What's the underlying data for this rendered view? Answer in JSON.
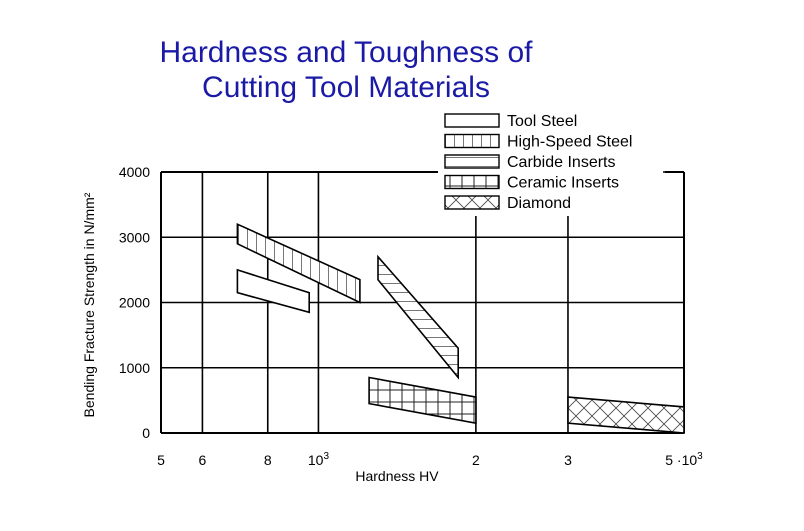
{
  "chart_data": {
    "type": "area",
    "title_lines": [
      "Hardness and Toughness of",
      "Cutting Tool Materials"
    ],
    "xlabel": "Hardness HV",
    "ylabel": "Bending Fracture Strength in N/mm²",
    "x_scale": "log",
    "xlim": [
      500,
      5000
    ],
    "ylim": [
      0,
      4000
    ],
    "grid": true,
    "legend_position": "top-right",
    "x_ticks": [
      {
        "value": 500,
        "label": "5"
      },
      {
        "value": 600,
        "label": "6"
      },
      {
        "value": 800,
        "label": "8"
      },
      {
        "value": 1000,
        "label": "10",
        "sup": "3"
      },
      {
        "value": 2000,
        "label": "2"
      },
      {
        "value": 3000,
        "label": "3"
      },
      {
        "value": 5000,
        "label": "5 ·10",
        "sup": "3"
      }
    ],
    "y_ticks": [
      {
        "value": 0,
        "label": "0"
      },
      {
        "value": 1000,
        "label": "1000"
      },
      {
        "value": 2000,
        "label": "2000"
      },
      {
        "value": 3000,
        "label": "3000"
      },
      {
        "value": 4000,
        "label": "4000"
      }
    ],
    "series": [
      {
        "name": "Tool Steel",
        "pattern": "none",
        "polygon": [
          [
            700,
            2500
          ],
          [
            960,
            2150
          ],
          [
            960,
            1850
          ],
          [
            700,
            2150
          ]
        ]
      },
      {
        "name": "High-Speed Steel",
        "pattern": "vertical",
        "polygon": [
          [
            700,
            3200
          ],
          [
            1200,
            2350
          ],
          [
            1200,
            2000
          ],
          [
            700,
            2900
          ]
        ]
      },
      {
        "name": "Carbide Inserts",
        "pattern": "horizontal",
        "polygon": [
          [
            1300,
            2700
          ],
          [
            1850,
            1300
          ],
          [
            1850,
            850
          ],
          [
            1300,
            2350
          ]
        ]
      },
      {
        "name": "Ceramic Inserts",
        "pattern": "grid",
        "polygon": [
          [
            1250,
            850
          ],
          [
            2000,
            550
          ],
          [
            2000,
            150
          ],
          [
            1250,
            450
          ]
        ]
      },
      {
        "name": "Diamond",
        "pattern": "crosshatch",
        "polygon": [
          [
            3000,
            550
          ],
          [
            5000,
            400
          ],
          [
            5000,
            0
          ],
          [
            3000,
            150
          ]
        ]
      }
    ]
  }
}
